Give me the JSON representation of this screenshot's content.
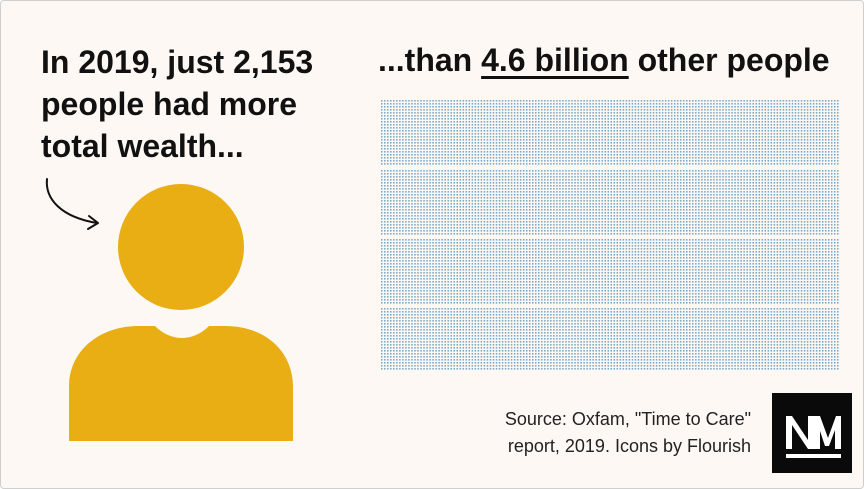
{
  "headline_left": "In 2019, just 2,153 people had more total wealth...",
  "headline_right": {
    "prefix": "...than ",
    "highlight": "4.6 billion",
    "suffix": " other people"
  },
  "source": {
    "line1": "Source: Oxfam, \"Time to Care\"",
    "line2": "report, 2019. Icons by Flourish"
  },
  "colors": {
    "background": "#fdf8f4",
    "person": "#e8ae13",
    "dots": "#7aa9c8",
    "text": "#111111",
    "logo": "#0a0a0a"
  },
  "icons": [
    "curved-arrow-icon",
    "person-icon",
    "publisher-logo"
  ]
}
